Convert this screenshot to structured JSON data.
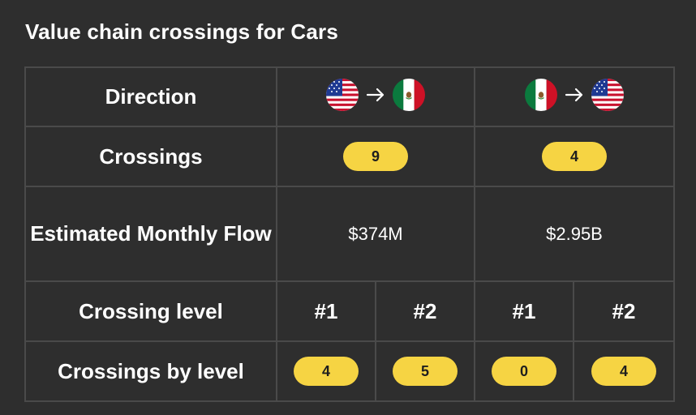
{
  "title": "Value chain crossings for Cars",
  "labels": {
    "direction": "Direction",
    "crossings": "Crossings",
    "flow": "Estimated Monthly Flow",
    "level": "Crossing level",
    "by_level": "Crossings by level"
  },
  "directions": [
    {
      "from_icon": "us-flag-icon",
      "to_icon": "mexico-flag-icon",
      "crossings": "9",
      "flow": "$374M",
      "levels": [
        "#1",
        "#2"
      ],
      "by_level": [
        "4",
        "5"
      ]
    },
    {
      "from_icon": "mexico-flag-icon",
      "to_icon": "us-flag-icon",
      "crossings": "4",
      "flow": "$2.95B",
      "levels": [
        "#1",
        "#2"
      ],
      "by_level": [
        "0",
        "4"
      ]
    }
  ],
  "colors": {
    "background": "#2e2e2e",
    "border": "#4a4a4a",
    "pill": "#f6d443",
    "pill_text": "#1e1e1e",
    "text": "#ffffff"
  }
}
